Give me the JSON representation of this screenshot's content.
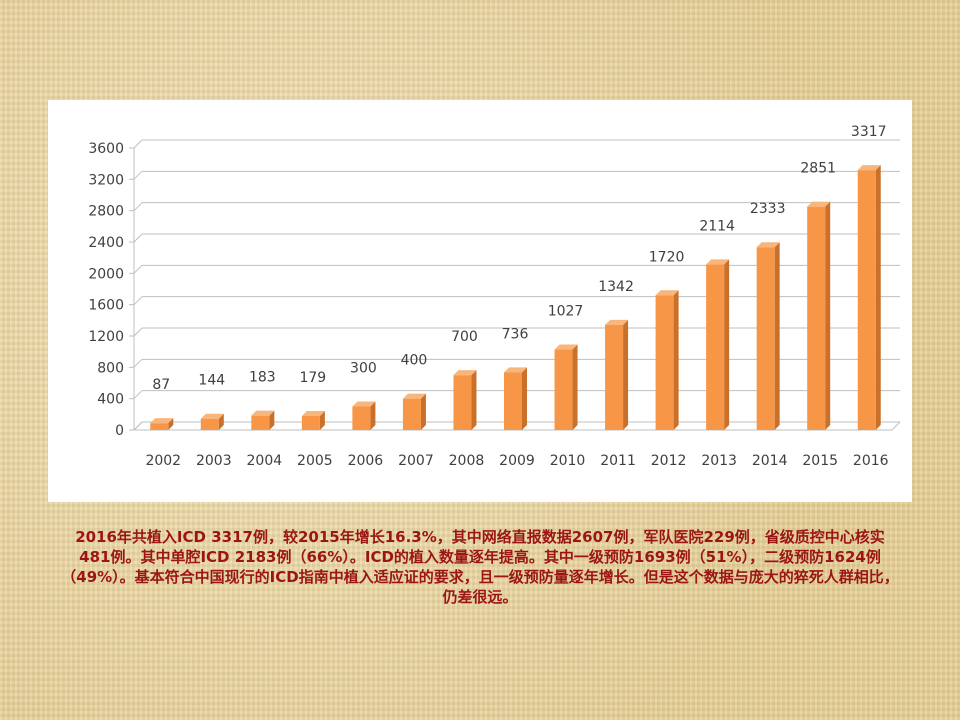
{
  "chart_data": {
    "type": "bar",
    "categories": [
      "2002",
      "2003",
      "2004",
      "2005",
      "2006",
      "2007",
      "2008",
      "2009",
      "2010",
      "2011",
      "2012",
      "2013",
      "2014",
      "2015",
      "2016"
    ],
    "values": [
      87,
      144,
      183,
      179,
      300,
      400,
      700,
      736,
      1027,
      1342,
      1720,
      2114,
      2333,
      2851,
      3317
    ],
    "title": "",
    "xlabel": "",
    "ylabel": "",
    "ylim": [
      0,
      3600
    ],
    "yticks": [
      0,
      400,
      800,
      1200,
      1600,
      2000,
      2400,
      2800,
      3200,
      3600
    ],
    "grid": true,
    "legend": "none",
    "bar_color": "#f79646",
    "bar_shade_color": "#c9702a",
    "data_labels": true
  },
  "caption": "2016年共植入ICD 3317例，较2015年增长16.3%，其中网络直报数据2607例，军队医院229例，省级质控中心核实481例。其中单腔ICD 2183例（66%）。ICD的植入数量逐年提高。其中一级预防1693例（51%），二级预防1624例（49%）。基本符合中国现行的ICD指南中植入适应证的要求，且一级预防量逐年增长。但是这个数据与庞大的猝死人群相比，仍差很远。",
  "colors": {
    "caption_text": "#9b1515",
    "panel": "#ffffff",
    "grid": "#bfbfbf",
    "text": "#404040"
  }
}
